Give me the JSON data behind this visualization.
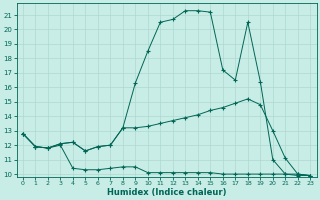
{
  "xlabel": "Humidex (Indice chaleur)",
  "ylabel": "",
  "bg_color": "#c8ece6",
  "grid_color": "#b0d8d0",
  "line_color": "#006655",
  "xlim": [
    -0.5,
    23.5
  ],
  "ylim": [
    9.8,
    21.8
  ],
  "yticks": [
    10,
    11,
    12,
    13,
    14,
    15,
    16,
    17,
    18,
    19,
    20,
    21
  ],
  "xticks": [
    0,
    1,
    2,
    3,
    4,
    5,
    6,
    7,
    8,
    9,
    10,
    11,
    12,
    13,
    14,
    15,
    16,
    17,
    18,
    19,
    20,
    21,
    22,
    23
  ],
  "line1_x": [
    0,
    1,
    2,
    3,
    4,
    5,
    6,
    7,
    8,
    9,
    10,
    11,
    12,
    13,
    14,
    15,
    16,
    17,
    18,
    19,
    20,
    21,
    22,
    23
  ],
  "line1_y": [
    12.8,
    11.9,
    11.8,
    12.0,
    10.4,
    10.3,
    10.3,
    10.4,
    10.5,
    10.5,
    10.1,
    10.1,
    10.1,
    10.1,
    10.1,
    10.1,
    10.0,
    10.0,
    10.0,
    10.0,
    10.0,
    10.0,
    10.0,
    9.9
  ],
  "line2_x": [
    0,
    1,
    2,
    3,
    4,
    5,
    6,
    7,
    8,
    9,
    10,
    11,
    12,
    13,
    14,
    15,
    16,
    17,
    18,
    19,
    20,
    21,
    22,
    23
  ],
  "line2_y": [
    12.8,
    11.9,
    11.8,
    12.1,
    12.2,
    11.6,
    11.9,
    12.0,
    13.2,
    13.2,
    13.3,
    13.5,
    13.7,
    13.9,
    14.1,
    14.4,
    14.6,
    14.9,
    15.2,
    14.8,
    13.0,
    11.1,
    10.0,
    9.9
  ],
  "line3_x": [
    0,
    1,
    2,
    3,
    4,
    5,
    6,
    7,
    8,
    9,
    10,
    11,
    12,
    13,
    14,
    15,
    16,
    17,
    18,
    19,
    20,
    21,
    22,
    23
  ],
  "line3_y": [
    12.8,
    11.9,
    11.8,
    12.1,
    12.2,
    11.6,
    11.9,
    12.0,
    13.2,
    16.3,
    18.5,
    20.5,
    20.7,
    21.3,
    21.3,
    21.2,
    17.2,
    16.5,
    20.5,
    16.4,
    11.0,
    10.0,
    9.9,
    9.9
  ]
}
